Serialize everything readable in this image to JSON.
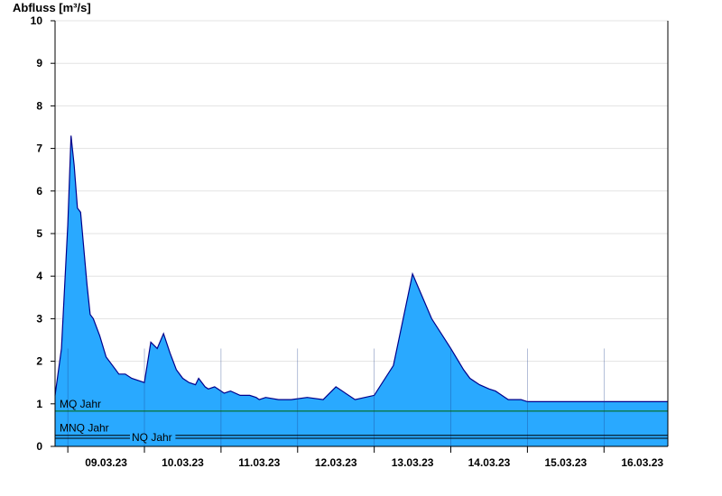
{
  "chart_data": {
    "type": "area",
    "ylabel": "Abfluss [m³/s]",
    "ylim": [
      0,
      10
    ],
    "yticks": [
      0,
      1,
      2,
      3,
      4,
      5,
      6,
      7,
      8,
      9,
      10
    ],
    "xlim": [
      "08.03.23 20:00",
      "16.03.23 20:00"
    ],
    "xticklabels": [
      "09.03.23",
      "10.03.23",
      "11.03.23",
      "12.03.23",
      "13.03.23",
      "14.03.23",
      "15.03.23",
      "16.03.23"
    ],
    "grid": true,
    "colors": {
      "fill": "#29A9FF",
      "line": "#00008B",
      "mq": "#006400",
      "mnq": "#000000",
      "nq": "#000000"
    },
    "series": [
      {
        "x": [
          "08.03.23 20:00",
          "08.03.23 22:00",
          "09.03.23 00:00",
          "09.03.23 01:00",
          "09.03.23 02:00",
          "09.03.23 03:00",
          "09.03.23 04:00",
          "09.03.23 06:00",
          "09.03.23 07:00",
          "09.03.23 08:00",
          "09.03.23 10:00",
          "09.03.23 12:00",
          "09.03.23 14:00",
          "09.03.23 16:00",
          "09.03.23 18:00",
          "09.03.23 20:00",
          "10.03.23 00:00",
          "10.03.23 02:00",
          "10.03.23 04:00",
          "10.03.23 06:00",
          "10.03.23 08:00",
          "10.03.23 10:00",
          "10.03.23 12:00",
          "10.03.23 14:00",
          "10.03.23 16:00",
          "10.03.23 17:00",
          "10.03.23 19:00",
          "10.03.23 20:00",
          "10.03.23 22:00",
          "10.03.23 23:00",
          "11.03.23 01:00",
          "11.03.23 03:00",
          "11.03.23 06:00",
          "11.03.23 09:00",
          "11.03.23 11:00",
          "11.03.23 12:00",
          "11.03.23 14:00",
          "11.03.23 18:00",
          "11.03.23 22:00",
          "12.03.23 03:00",
          "12.03.23 08:00",
          "12.03.23 12:00",
          "12.03.23 18:00",
          "13.03.23 00:00",
          "13.03.23 06:00",
          "13.03.23 12:00",
          "13.03.23 18:00",
          "14.03.23 00:00",
          "14.03.23 04:00",
          "14.03.23 06:00",
          "14.03.23 09:00",
          "14.03.23 12:00",
          "14.03.23 14:00",
          "14.03.23 15:00",
          "14.03.23 16:00",
          "14.03.23 17:00",
          "14.03.23 18:00",
          "14.03.23 20:00",
          "14.03.23 22:00",
          "15.03.23 00:00",
          "15.03.23 02:00",
          "15.03.23 06:00",
          "15.03.23 09:00",
          "15.03.23 12:00",
          "15.03.23 15:00",
          "15.03.23 18:00",
          "16.03.23 00:00",
          "16.03.23 06:00",
          "16.03.23 12:00",
          "16.03.23 18:00",
          "16.03.23 20:00"
        ],
        "y": [
          1.2,
          2.3,
          5.2,
          7.3,
          6.6,
          5.6,
          5.5,
          3.8,
          3.1,
          3.0,
          2.6,
          2.1,
          1.9,
          1.7,
          1.7,
          1.6,
          1.5,
          2.45,
          2.3,
          2.65,
          2.2,
          1.8,
          1.6,
          1.5,
          1.45,
          1.6,
          1.4,
          1.35,
          1.4,
          1.35,
          1.25,
          1.3,
          1.2,
          1.2,
          1.15,
          1.1,
          1.15,
          1.1,
          1.1,
          1.15,
          1.1,
          1.4,
          1.1,
          1.2,
          1.9,
          4.05,
          3.0,
          2.3,
          1.8,
          1.6,
          1.45,
          1.35,
          1.3,
          1.25,
          1.2,
          1.15,
          1.1,
          1.1,
          1.1,
          1.05,
          1.05,
          1.05,
          1.05,
          1.05,
          1.05,
          1.05,
          1.05,
          1.05,
          1.05,
          1.05,
          1.05
        ]
      }
    ],
    "reference_lines": [
      {
        "label": "MQ Jahr",
        "value": 0.83
      },
      {
        "label": "MNQ Jahr",
        "value": 0.26
      },
      {
        "label": "NQ Jahr",
        "value": 0.19
      }
    ]
  }
}
